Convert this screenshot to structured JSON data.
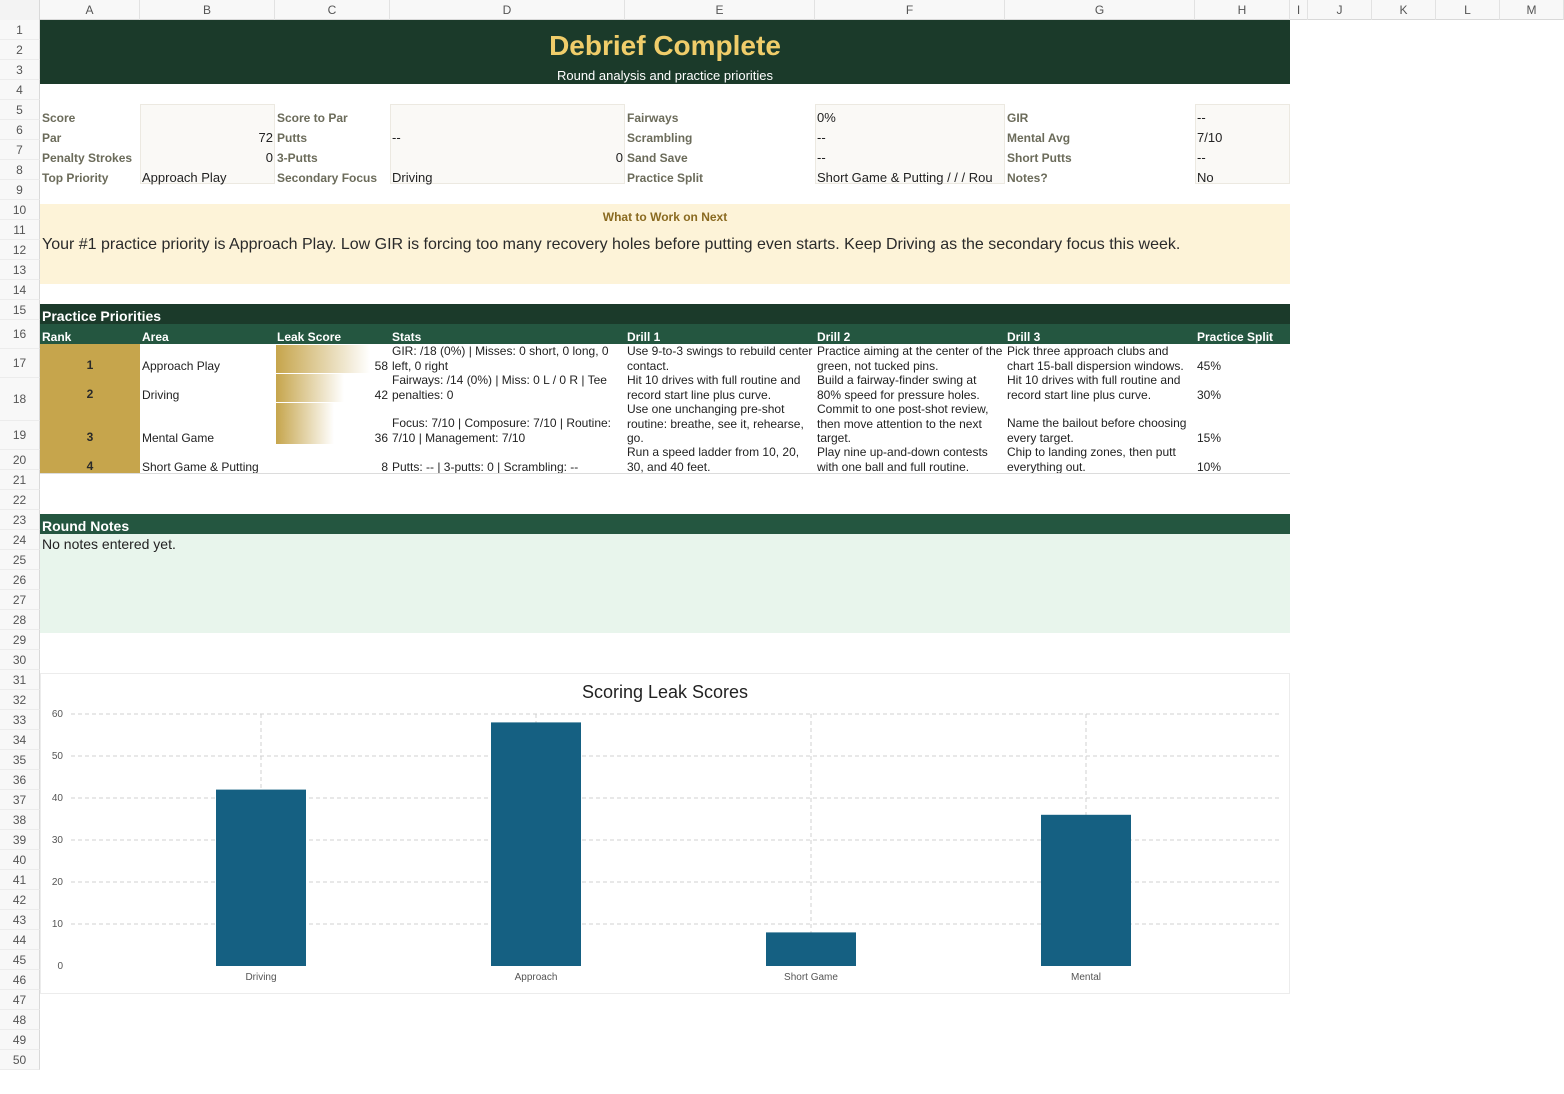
{
  "columns": [
    "A",
    "B",
    "C",
    "D",
    "E",
    "F",
    "G",
    "H",
    "I",
    "J",
    "K",
    "L",
    "M"
  ],
  "rows": [
    "1",
    "2",
    "3",
    "4",
    "5",
    "6",
    "7",
    "8",
    "9",
    "10",
    "11",
    "12",
    "13",
    "14",
    "15",
    "16",
    "17",
    "18",
    "19",
    "20",
    "21",
    "22",
    "23",
    "24",
    "25",
    "26",
    "27",
    "28",
    "29",
    "30",
    "31",
    "32",
    "33",
    "34",
    "35",
    "36",
    "37",
    "38",
    "39",
    "40",
    "41",
    "42",
    "43",
    "44",
    "45",
    "46",
    "47",
    "48",
    "49",
    "50"
  ],
  "header": {
    "title": "Debrief Complete",
    "subtitle": "Round analysis and practice priorities"
  },
  "summary": {
    "score_label": "Score",
    "score_value": "",
    "par_label": "Par",
    "par_value": "72",
    "penalty_label": "Penalty Strokes",
    "penalty_value": "0",
    "top_priority_label": "Top Priority",
    "top_priority_value": "Approach Play",
    "score_to_par_label": "Score to Par",
    "score_to_par_value": "",
    "putts_label": "Putts",
    "putts_value": "--",
    "three_putts_label": "3-Putts",
    "three_putts_value": "0",
    "secondary_label": "Secondary Focus",
    "secondary_value": "Driving",
    "fairways_label": "Fairways",
    "fairways_value": "0%",
    "scrambling_label": "Scrambling",
    "scrambling_value": "--",
    "sand_save_label": "Sand Save",
    "sand_save_value": "--",
    "practice_split_label": "Practice Split",
    "practice_split_value": "Short Game & Putting /  /  / Rou",
    "gir_label": "GIR",
    "gir_value": "--",
    "mental_label": "Mental Avg",
    "mental_value": "7/10",
    "short_putts_label": "Short Putts",
    "short_putts_value": "--",
    "notes_label": "Notes?",
    "notes_value": "No"
  },
  "work_next": {
    "title": "What to Work on Next",
    "text": "Your #1 practice priority is Approach Play. Low GIR is forcing too many recovery holes before putting even starts. Keep Driving as the secondary focus this week."
  },
  "priorities": {
    "section_title": "Practice Priorities",
    "headers": [
      "Rank",
      "Area",
      "Leak Score",
      "Stats",
      "Drill 1",
      "Drill 2",
      "Drill 3",
      "Practice Split"
    ],
    "rows": [
      {
        "rank": "1",
        "area": "Approach Play",
        "leak": "58",
        "leak_fraction": 0.58,
        "stats": "GIR: /18 (0%) | Misses: 0 short, 0 long, 0 left, 0 right",
        "drill1": "Use 9-to-3 swings to rebuild center contact.",
        "drill2": "Practice aiming at the center of the green, not tucked pins.",
        "drill3": "Pick three approach clubs and chart 15-ball dispersion windows.",
        "split": "45%"
      },
      {
        "rank": "2",
        "area": "Driving",
        "leak": "42",
        "leak_fraction": 0.42,
        "stats": "Fairways: /14 (0%) | Miss: 0 L / 0 R | Tee penalties: 0",
        "drill1": "Hit 10 drives with full routine and record start line plus curve.",
        "drill2": "Build a fairway-finder swing at 80% speed for pressure holes.",
        "drill3": "Hit 10 drives with full routine and record start line plus curve.",
        "split": "30%"
      },
      {
        "rank": "3",
        "area": "Mental Game",
        "leak": "36",
        "leak_fraction": 0.36,
        "stats": "Focus: 7/10 | Composure: 7/10 | Routine: 7/10 | Management: 7/10",
        "drill1": "Use one unchanging pre-shot routine: breathe, see it, rehearse, go.",
        "drill2": "Commit to one post-shot review, then move attention to the next target.",
        "drill3": "Name the bailout before choosing every target.",
        "split": "15%"
      },
      {
        "rank": "4",
        "area": "Short Game & Putting",
        "leak": "8",
        "leak_fraction": 0.08,
        "stats": "Putts: -- | 3-putts: 0 | Scrambling: --",
        "drill1": "Run a speed ladder from 10, 20, 30, and 40 feet.",
        "drill2": "Play nine up-and-down contests with one ball and full routine.",
        "drill3": "Chip to landing zones, then putt everything out.",
        "split": "10%"
      }
    ]
  },
  "notes": {
    "section_title": "Round Notes",
    "text": "No notes entered yet."
  },
  "colors": {
    "title_band": "#1b3a2a",
    "title_text": "#f0cd6a",
    "section_green": "#245640",
    "rank_gold": "#c6a54c",
    "work_band": "#fdf3d8",
    "notes_band": "#e8f5ec",
    "bar": "#156082"
  },
  "chart_data": {
    "type": "bar",
    "title": "Scoring Leak Scores",
    "categories": [
      "Driving",
      "Approach",
      "Short Game",
      "Mental"
    ],
    "values": [
      42,
      58,
      8,
      36
    ],
    "ylim": [
      0,
      60
    ],
    "yticks": [
      0,
      10,
      20,
      30,
      40,
      50,
      60
    ],
    "grid": true,
    "legend": "none"
  }
}
